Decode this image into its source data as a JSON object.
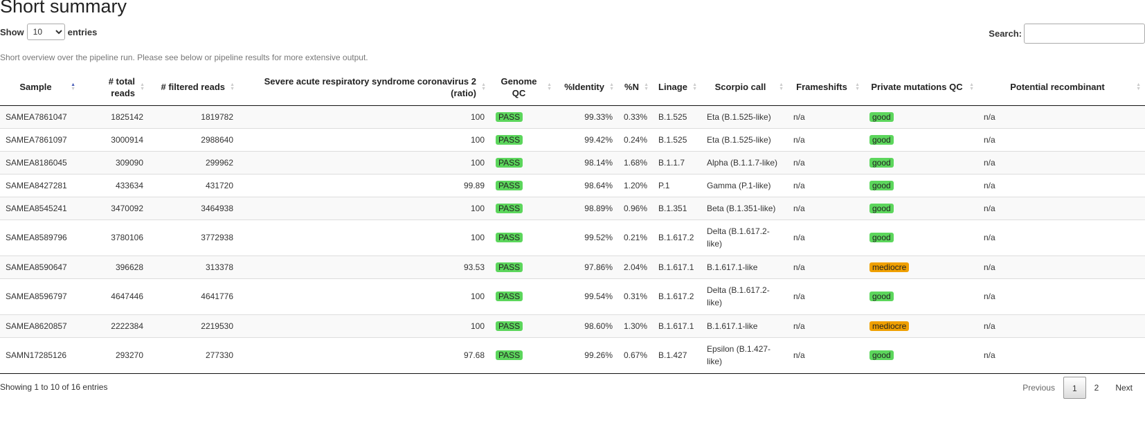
{
  "title": "Short summary",
  "length": {
    "show_label": "Show",
    "value": "10",
    "entries_label": "entries"
  },
  "search": {
    "label": "Search:",
    "value": ""
  },
  "caption": "Short overview over the pipeline run. Please see below or pipeline results for more extensive output.",
  "columns": [
    {
      "label": "Sample"
    },
    {
      "label": "# total reads"
    },
    {
      "label": "# filtered reads"
    },
    {
      "label": "Severe acute respiratory syndrome coronavirus 2 (ratio)"
    },
    {
      "label": "Genome QC"
    },
    {
      "label": "%Identity"
    },
    {
      "label": "%N"
    },
    {
      "label": "Linage"
    },
    {
      "label": "Scorpio call"
    },
    {
      "label": "Frameshifts"
    },
    {
      "label": "Private mutations QC"
    },
    {
      "label": "Potential recombinant"
    }
  ],
  "rows": [
    {
      "sample": "SAMEA7861047",
      "total": "1825142",
      "filtered": "1819782",
      "ratio": "100",
      "qc": "PASS",
      "identity": "99.33%",
      "n": "0.33%",
      "linage": "B.1.525",
      "scorpio": "Eta (B.1.525-like)",
      "frameshifts": "n/a",
      "private": "good",
      "recomb": "n/a"
    },
    {
      "sample": "SAMEA7861097",
      "total": "3000914",
      "filtered": "2988640",
      "ratio": "100",
      "qc": "PASS",
      "identity": "99.42%",
      "n": "0.24%",
      "linage": "B.1.525",
      "scorpio": "Eta (B.1.525-like)",
      "frameshifts": "n/a",
      "private": "good",
      "recomb": "n/a"
    },
    {
      "sample": "SAMEA8186045",
      "total": "309090",
      "filtered": "299962",
      "ratio": "100",
      "qc": "PASS",
      "identity": "98.14%",
      "n": "1.68%",
      "linage": "B.1.1.7",
      "scorpio": "Alpha (B.1.1.7-like)",
      "frameshifts": "n/a",
      "private": "good",
      "recomb": "n/a"
    },
    {
      "sample": "SAMEA8427281",
      "total": "433634",
      "filtered": "431720",
      "ratio": "99.89",
      "qc": "PASS",
      "identity": "98.64%",
      "n": "1.20%",
      "linage": "P.1",
      "scorpio": "Gamma (P.1-like)",
      "frameshifts": "n/a",
      "private": "good",
      "recomb": "n/a"
    },
    {
      "sample": "SAMEA8545241",
      "total": "3470092",
      "filtered": "3464938",
      "ratio": "100",
      "qc": "PASS",
      "identity": "98.89%",
      "n": "0.96%",
      "linage": "B.1.351",
      "scorpio": "Beta (B.1.351-like)",
      "frameshifts": "n/a",
      "private": "good",
      "recomb": "n/a"
    },
    {
      "sample": "SAMEA8589796",
      "total": "3780106",
      "filtered": "3772938",
      "ratio": "100",
      "qc": "PASS",
      "identity": "99.52%",
      "n": "0.21%",
      "linage": "B.1.617.2",
      "scorpio": "Delta (B.1.617.2-like)",
      "frameshifts": "n/a",
      "private": "good",
      "recomb": "n/a"
    },
    {
      "sample": "SAMEA8590647",
      "total": "396628",
      "filtered": "313378",
      "ratio": "93.53",
      "qc": "PASS",
      "identity": "97.86%",
      "n": "2.04%",
      "linage": "B.1.617.1",
      "scorpio": "B.1.617.1-like",
      "frameshifts": "n/a",
      "private": "mediocre",
      "recomb": "n/a"
    },
    {
      "sample": "SAMEA8596797",
      "total": "4647446",
      "filtered": "4641776",
      "ratio": "100",
      "qc": "PASS",
      "identity": "99.54%",
      "n": "0.31%",
      "linage": "B.1.617.2",
      "scorpio": "Delta (B.1.617.2-like)",
      "frameshifts": "n/a",
      "private": "good",
      "recomb": "n/a"
    },
    {
      "sample": "SAMEA8620857",
      "total": "2222384",
      "filtered": "2219530",
      "ratio": "100",
      "qc": "PASS",
      "identity": "98.60%",
      "n": "1.30%",
      "linage": "B.1.617.1",
      "scorpio": "B.1.617.1-like",
      "frameshifts": "n/a",
      "private": "mediocre",
      "recomb": "n/a"
    },
    {
      "sample": "SAMN17285126",
      "total": "293270",
      "filtered": "277330",
      "ratio": "97.68",
      "qc": "PASS",
      "identity": "99.26%",
      "n": "0.67%",
      "linage": "B.1.427",
      "scorpio": "Epsilon (B.1.427-like)",
      "frameshifts": "n/a",
      "private": "good",
      "recomb": "n/a"
    }
  ],
  "info": "Showing 1 to 10 of 16 entries",
  "pagination": {
    "previous": "Previous",
    "pages": [
      "1",
      "2"
    ],
    "current": "1",
    "next": "Next"
  }
}
